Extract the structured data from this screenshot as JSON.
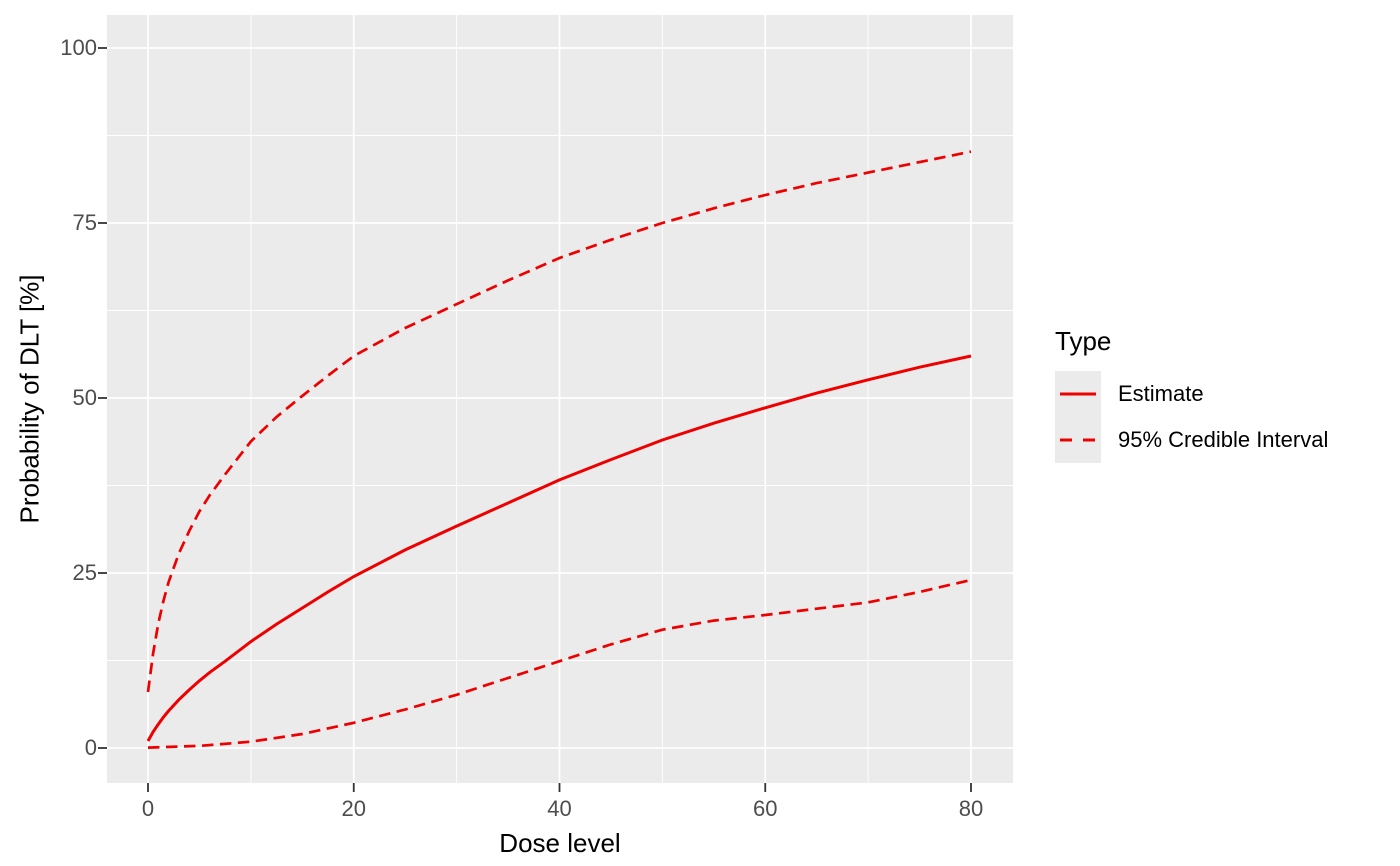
{
  "colors": {
    "line": "#EE0000",
    "panel_bg": "#EBEBEB",
    "grid": "#FFFFFF",
    "tick_label": "#4D4D4D",
    "axis_title": "#000000",
    "tick_mark": "#333333"
  },
  "legend": {
    "title": "Type",
    "items": [
      {
        "label": "Estimate",
        "style": "solid"
      },
      {
        "label": "95% Credible Interval",
        "style": "dashed"
      }
    ]
  },
  "chart_data": {
    "type": "line",
    "title": "",
    "xlabel": "Dose level",
    "ylabel": "Probability of DLT [%]",
    "xlim": [
      0,
      80
    ],
    "ylim": [
      0,
      100
    ],
    "x_ticks": [
      0,
      20,
      40,
      60,
      80
    ],
    "y_ticks": [
      0,
      25,
      50,
      75,
      100
    ],
    "x_minor_gridlines": [
      10,
      30,
      50,
      70
    ],
    "y_minor_gridlines": [
      12.5,
      37.5,
      62.5,
      87.5
    ],
    "grid": "white major and minor gridlines on grey panel",
    "legend_position": "right",
    "legend_title": "Type",
    "series": [
      {
        "name": "Estimate",
        "style": "solid",
        "color": "#EE0000",
        "x": [
          0,
          0.5,
          1,
          1.5,
          2,
          3,
          4,
          5,
          6,
          7.5,
          10,
          12.5,
          15,
          17.5,
          20,
          25,
          30,
          35,
          40,
          45,
          50,
          55,
          60,
          65,
          70,
          75,
          80
        ],
        "y": [
          1.0,
          2.3,
          3.4,
          4.4,
          5.3,
          6.9,
          8.3,
          9.6,
          10.8,
          12.4,
          15.2,
          17.7,
          20.0,
          22.3,
          24.5,
          28.3,
          31.7,
          35.0,
          38.3,
          41.2,
          44.0,
          46.4,
          48.6,
          50.7,
          52.6,
          54.4,
          56.0
        ]
      },
      {
        "name": "95% Credible Interval (upper)",
        "style": "dashed",
        "color": "#EE0000",
        "x": [
          0,
          0.5,
          1,
          1.5,
          2,
          3,
          4,
          5,
          6,
          7.5,
          10,
          12.5,
          15,
          17.5,
          20,
          25,
          30,
          35,
          40,
          45,
          50,
          55,
          60,
          65,
          70,
          75,
          80
        ],
        "y": [
          8.0,
          13.5,
          17.8,
          21.0,
          23.7,
          27.8,
          31.0,
          33.8,
          36.1,
          39.1,
          43.8,
          47.3,
          50.3,
          53.2,
          56.0,
          60.0,
          63.4,
          66.8,
          70.0,
          72.6,
          75.0,
          77.1,
          79.0,
          80.7,
          82.2,
          83.7,
          85.2
        ]
      },
      {
        "name": "95% Credible Interval (lower)",
        "style": "dashed",
        "color": "#EE0000",
        "x": [
          0,
          5,
          10,
          15,
          20,
          25,
          30,
          35,
          40,
          45,
          50,
          55,
          60,
          65,
          70,
          75,
          80
        ],
        "y": [
          0.05,
          0.3,
          0.9,
          2.0,
          3.6,
          5.5,
          7.6,
          10.0,
          12.4,
          14.8,
          16.9,
          18.2,
          19.0,
          19.9,
          20.8,
          22.3,
          24.0
        ]
      }
    ]
  }
}
